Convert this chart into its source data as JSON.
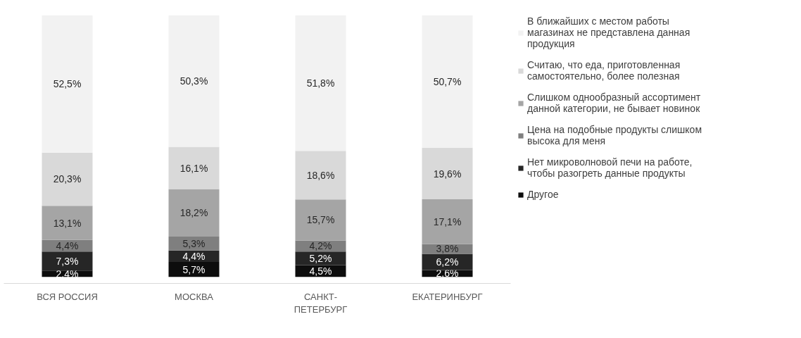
{
  "chart_data": {
    "type": "bar",
    "stacked": true,
    "categories": [
      "ВСЯ РОССИЯ",
      "МОСКВА",
      "САНКТ-ПЕТЕРБУРГ",
      "ЕКАТЕРИНБУРГ"
    ],
    "legend": "right",
    "tick_labels": "x",
    "grid": false,
    "series": [
      {
        "name": "Другое",
        "color": "#0d0d0d",
        "values": [
          2.4,
          5.7,
          4.5,
          2.6
        ],
        "value_labels": [
          "2,4%",
          "5,7%",
          "4,5%",
          "2,6%"
        ]
      },
      {
        "name": "Нет микроволновой печи на работе, чтобы разогреть данные продукты",
        "color": "#262626",
        "values": [
          7.3,
          4.4,
          5.2,
          6.2
        ],
        "value_labels": [
          "7,3%",
          "4,4%",
          "5,2%",
          "6,2%"
        ]
      },
      {
        "name": "Цена на подобные продукты слишком высока для меня",
        "color": "#7f7f7f",
        "values": [
          4.4,
          5.3,
          4.2,
          3.8
        ],
        "value_labels": [
          "4,4%",
          "5,3%",
          "4,2%",
          "3,8%"
        ]
      },
      {
        "name": "Слишком однообразный ассортимент данной категории, не бывает новинок",
        "color": "#a5a5a5",
        "values": [
          13.1,
          18.2,
          15.7,
          17.1
        ],
        "value_labels": [
          "13,1%",
          "18,2%",
          "15,7%",
          "17,1%"
        ]
      },
      {
        "name": "Считаю, что еда, приготовленная самостоятельно, более полезная",
        "color": "#d9d9d9",
        "values": [
          20.3,
          16.1,
          18.6,
          19.6
        ],
        "value_labels": [
          "20,3%",
          "16,1%",
          "18,6%",
          "19,6%"
        ]
      },
      {
        "name": "В ближайших с местом работы магазинах не представлена данная продукция",
        "color": "#f2f2f2",
        "values": [
          52.5,
          50.3,
          51.8,
          50.7
        ],
        "value_labels": [
          "52,5%",
          "50,3%",
          "51,8%",
          "50,7%"
        ]
      }
    ]
  }
}
